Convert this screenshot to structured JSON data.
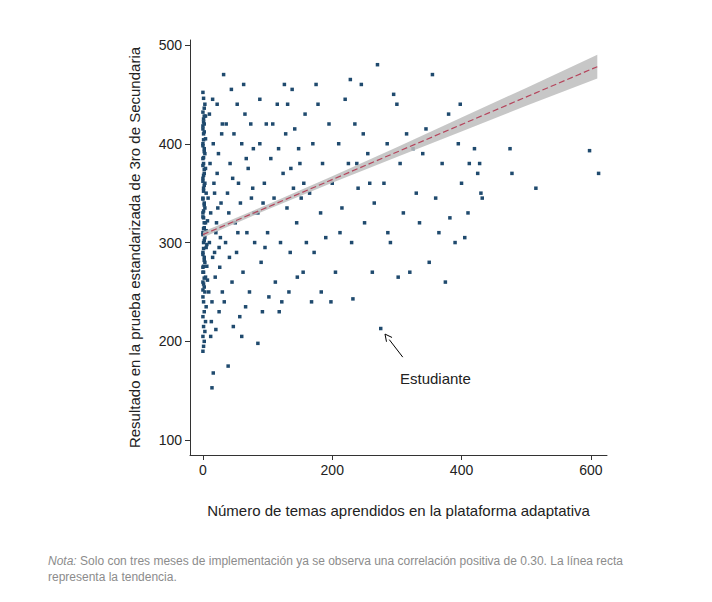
{
  "chart_data": {
    "type": "scatter",
    "y_label": "Resultado en la prueba estandarizada de 3ro de Secundaria",
    "x_label": "Número de temas aprendidos en la plataforma adaptativa",
    "color": "#1f4a6e",
    "marker": "square",
    "grid": false,
    "xlim": [
      -20,
      625
    ],
    "xticks": [
      0,
      200,
      400,
      600
    ],
    "ylim": [
      85,
      505
    ],
    "yticks": [
      100,
      200,
      300,
      400,
      500
    ],
    "x": [
      0,
      1,
      2,
      0,
      3,
      1,
      4,
      0,
      2,
      5,
      1,
      0,
      3,
      2,
      0,
      4,
      1,
      0,
      3,
      2,
      0,
      5,
      1,
      3,
      0,
      2,
      4,
      1,
      0,
      3,
      2,
      0,
      5,
      1,
      3,
      0,
      2,
      4,
      1,
      0,
      3,
      2,
      0,
      4,
      1,
      0,
      2,
      1,
      0,
      3,
      1,
      0,
      2,
      4,
      5,
      6,
      7,
      6,
      8,
      7,
      0,
      1,
      2,
      0,
      1,
      2,
      0,
      1,
      2,
      0,
      1,
      2,
      0,
      1,
      2,
      0,
      1,
      2,
      0,
      1,
      2,
      0,
      1,
      2,
      0,
      1,
      2,
      0,
      1,
      2,
      10,
      12,
      15,
      18,
      20,
      22,
      25,
      28,
      9,
      11,
      14,
      16,
      19,
      21,
      24,
      26,
      29,
      13,
      17,
      23,
      27,
      30,
      10,
      15,
      20,
      25,
      12,
      30,
      22,
      18,
      32,
      35,
      38,
      40,
      42,
      45,
      48,
      50,
      52,
      55,
      58,
      60,
      62,
      65,
      68,
      70,
      72,
      75,
      78,
      80,
      33,
      36,
      44,
      47,
      53,
      57,
      63,
      66,
      74,
      79,
      39,
      16,
      14,
      60,
      85,
      41,
      46,
      54,
      67,
      77,
      85,
      88,
      90,
      95,
      98,
      100,
      105,
      110,
      112,
      115,
      120,
      124,
      128,
      130,
      135,
      138,
      140,
      145,
      148,
      150,
      155,
      158,
      92,
      102,
      118,
      126,
      133,
      142,
      152,
      160,
      88,
      96,
      108,
      122,
      136,
      156,
      93,
      117,
      131,
      146,
      165,
      170,
      172,
      178,
      182,
      185,
      190,
      195,
      200,
      205,
      210,
      215,
      220,
      225,
      230,
      235,
      240,
      245,
      250,
      255,
      168,
      183,
      198,
      232,
      212,
      228,
      248,
      258,
      175,
      238,
      265,
      270,
      275,
      280,
      285,
      290,
      295,
      300,
      305,
      310,
      315,
      320,
      325,
      330,
      340,
      350,
      355,
      360,
      370,
      375,
      380,
      390,
      395,
      400,
      405,
      410,
      420,
      425,
      430,
      432,
      365,
      382,
      412,
      286,
      302,
      345,
      428,
      398,
      262,
      335,
      515,
      598,
      612,
      475,
      478
    ],
    "values": [
      190,
      195,
      200,
      205,
      210,
      215,
      220,
      225,
      230,
      235,
      240,
      245,
      250,
      255,
      260,
      265,
      270,
      275,
      280,
      285,
      290,
      295,
      300,
      305,
      310,
      315,
      320,
      325,
      330,
      335,
      340,
      345,
      350,
      355,
      360,
      365,
      370,
      375,
      380,
      385,
      390,
      395,
      400,
      405,
      410,
      415,
      420,
      425,
      432,
      440,
      446,
      452,
      436,
      428,
      312,
      298,
      322,
      276,
      345,
      262,
      252,
      258,
      264,
      270,
      276,
      282,
      288,
      294,
      302,
      308,
      314,
      320,
      326,
      332,
      338,
      344,
      352,
      358,
      362,
      368,
      374,
      378,
      386,
      392,
      398,
      404,
      412,
      418,
      422,
      428,
      300,
      330,
      285,
      350,
      310,
      370,
      295,
      340,
      250,
      380,
      240,
      400,
      265,
      320,
      390,
      275,
      410,
      220,
      360,
      335,
      305,
      420,
      430,
      445,
      212,
      230,
      205,
      250,
      440,
      290,
      470,
      300,
      350,
      330,
      380,
      260,
      410,
      320,
      290,
      360,
      340,
      400,
      270,
      430,
      310,
      375,
      250,
      345,
      395,
      300,
      240,
      420,
      455,
      215,
      440,
      225,
      460,
      235,
      420,
      330,
      175,
      168,
      153,
      205,
      198,
      285,
      365,
      310,
      385,
      355,
      330,
      400,
      280,
      360,
      420,
      310,
      385,
      345,
      260,
      440,
      300,
      370,
      410,
      335,
      290,
      455,
      355,
      320,
      395,
      380,
      270,
      430,
      230,
      245,
      230,
      460,
      250,
      415,
      345,
      300,
      445,
      295,
      420,
      240,
      375,
      360,
      340,
      395,
      440,
      265,
      350,
      400,
      290,
      440,
      330,
      380,
      305,
      420,
      360,
      270,
      400,
      335,
      445,
      380,
      300,
      420,
      355,
      460,
      320,
      390,
      240,
      250,
      240,
      243,
      310,
      465,
      410,
      360,
      460,
      380,
      340,
      480,
      213,
      360,
      400,
      300,
      450,
      440,
      380,
      330,
      410,
      270,
      395,
      350,
      390,
      280,
      470,
      345,
      380,
      260,
      430,
      300,
      400,
      360,
      305,
      330,
      395,
      370,
      350,
      345,
      310,
      325,
      380,
      310,
      265,
      415,
      380,
      440,
      270,
      320,
      355,
      393,
      370,
      395,
      370
    ],
    "trend": {
      "x": [
        0,
        610
      ],
      "values": [
        308,
        478
      ],
      "color": "#b5455c",
      "line_style": "dashed"
    },
    "band": {
      "x": [
        0,
        100,
        200,
        300,
        400,
        500,
        610
      ],
      "lower": [
        305,
        333.5,
        360.5,
        386.5,
        412.5,
        438.5,
        466
      ],
      "upper": [
        311,
        338.5,
        367,
        396.5,
        426.5,
        456.5,
        490
      ],
      "color": "#bdbdbd"
    },
    "annotation": {
      "text": "Estudiante",
      "x": 328,
      "y": 168,
      "target": [
        275,
        213
      ]
    },
    "note": {
      "label": "Nota:",
      "text": "Solo con tres meses de implementación ya se observa una correlación positiva de 0.30. La línea recta representa la tendencia."
    }
  }
}
